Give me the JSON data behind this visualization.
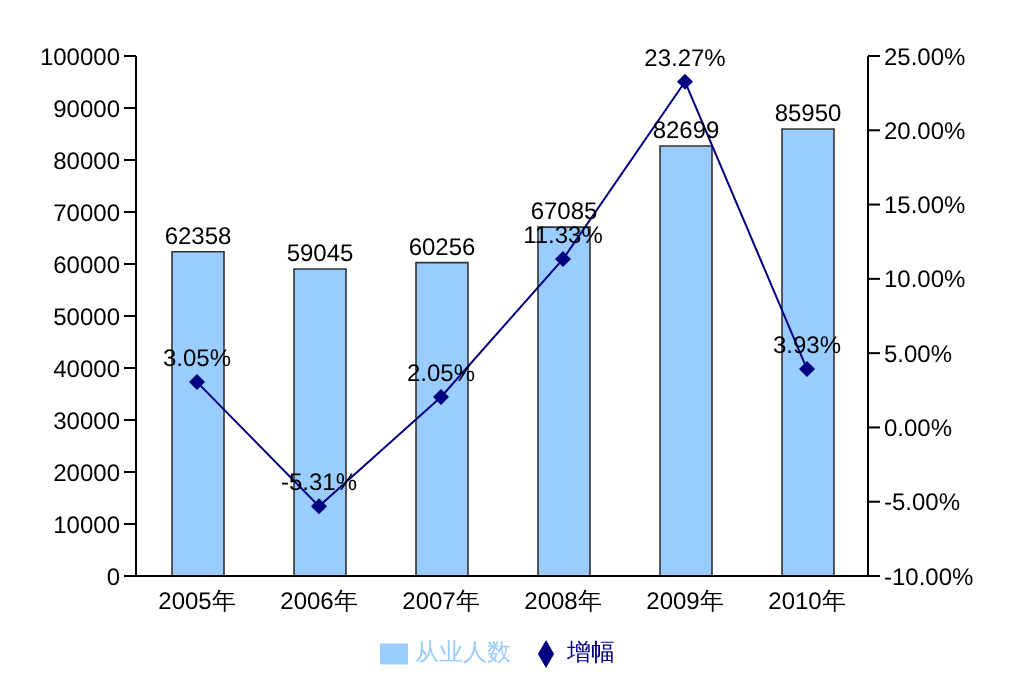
{
  "chart_data": {
    "type": "bar",
    "categories": [
      "2005年",
      "2006年",
      "2007年",
      "2008年",
      "2009年",
      "2010年"
    ],
    "series": [
      {
        "name": "从业人数",
        "color": "#99ccff",
        "values": [
          62358,
          59045,
          60256,
          67085,
          82699,
          85950
        ],
        "value_labels": [
          "62358",
          "59045",
          "60256",
          "67085",
          "82699",
          "85950"
        ]
      },
      {
        "name": "增幅",
        "type": "line",
        "axis": "y2",
        "color": "#000080",
        "values": [
          3.05,
          -5.31,
          2.05,
          11.33,
          23.27,
          3.93
        ],
        "value_labels": [
          "3.05%",
          "-5.31%",
          "2.05%",
          "11.33%",
          "23.27%",
          "3.93%"
        ]
      }
    ],
    "ylim": [
      0,
      100000
    ],
    "yticks": [
      0,
      10000,
      20000,
      30000,
      40000,
      50000,
      60000,
      70000,
      80000,
      90000,
      100000
    ],
    "y2lim": [
      -10,
      25
    ],
    "y2ticks": [
      {
        "value": -10,
        "label": "-10.00%"
      },
      {
        "value": -5,
        "label": "-5.00%"
      },
      {
        "value": 0,
        "label": "0.00%"
      },
      {
        "value": 5,
        "label": "5.00%"
      },
      {
        "value": 10,
        "label": "10.00%"
      },
      {
        "value": 15,
        "label": "15.00%"
      },
      {
        "value": 20,
        "label": "20.00%"
      },
      {
        "value": 25,
        "label": "25.00%"
      }
    ],
    "grid": false,
    "legend": "bottom",
    "marker": "diamond",
    "line_style": "solid"
  }
}
